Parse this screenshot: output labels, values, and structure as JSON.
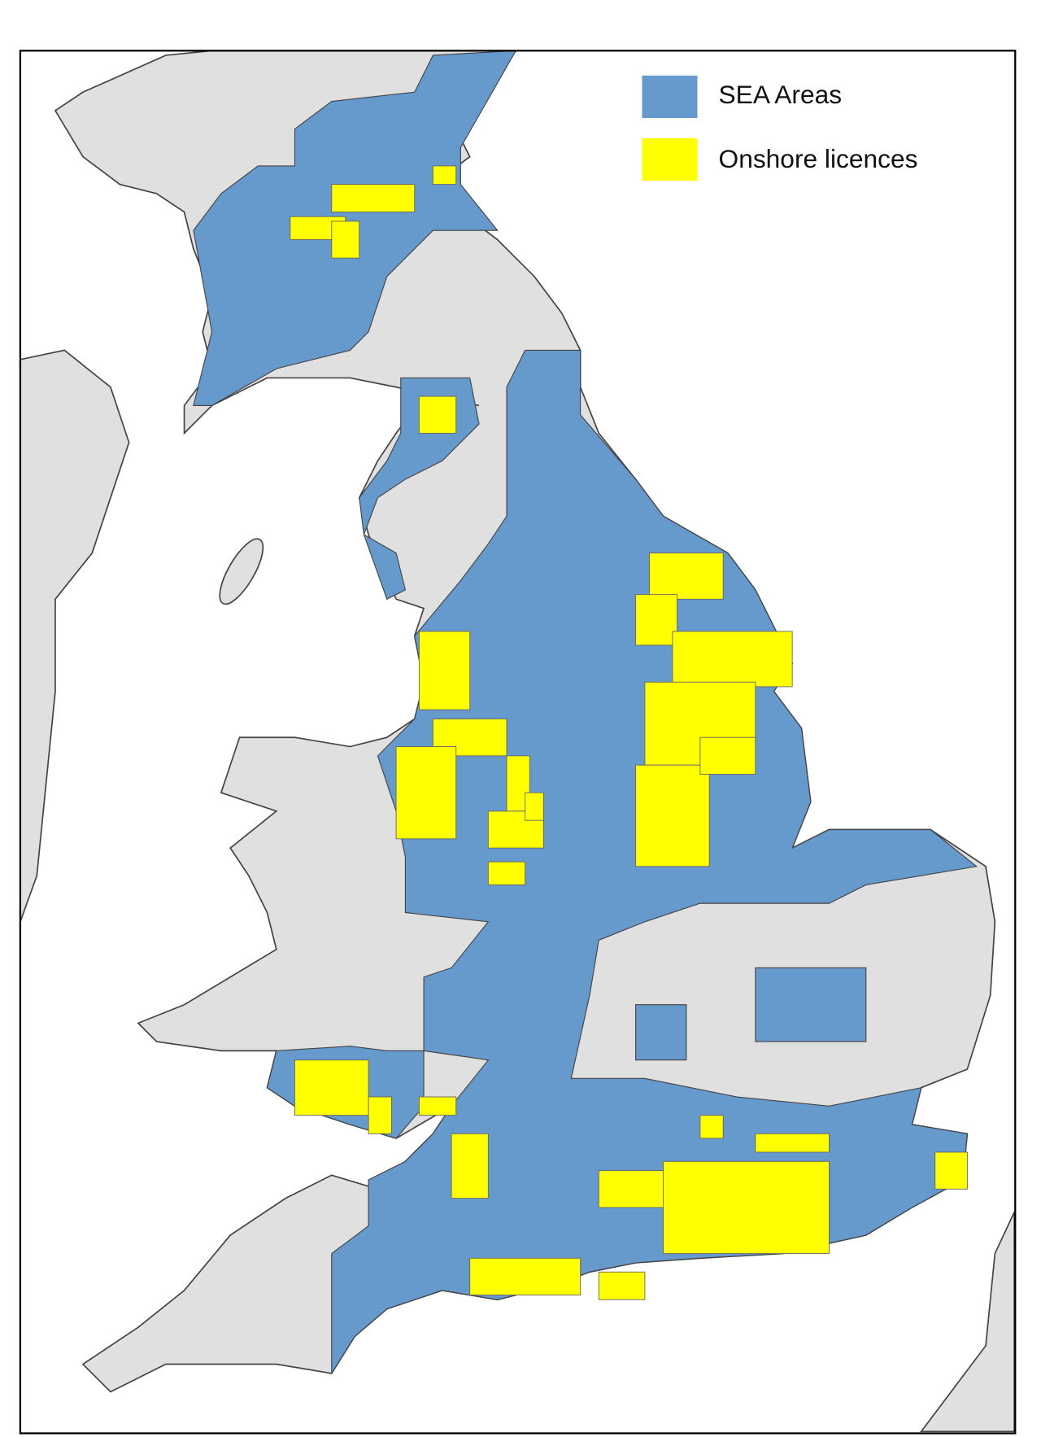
{
  "legend": {
    "items": [
      {
        "label": "SEA Areas",
        "color": "#6699CC"
      },
      {
        "label": "Onshore licences",
        "color": "#FFFF00"
      }
    ]
  },
  "colors": {
    "land": "#E0E0E0",
    "sea": "#FFFFFF",
    "boundary": "#444444",
    "frame": "#000000"
  }
}
